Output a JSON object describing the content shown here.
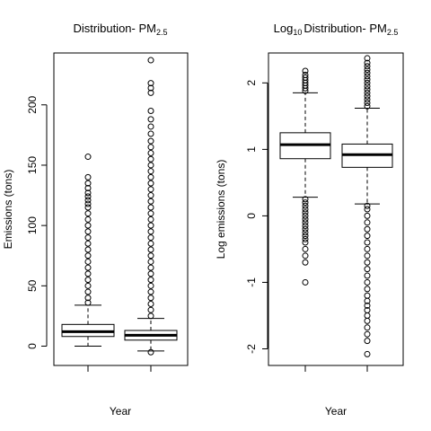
{
  "chart_data": [
    {
      "type": "boxplot",
      "title": "Distribution- PM",
      "title_subscript": "2.5",
      "xlabel": "Year",
      "ylabel": "Emissions (tons)",
      "yticks": [
        0,
        50,
        100,
        150,
        200
      ],
      "ylim": [
        -16,
        243
      ],
      "grid": false,
      "legend": "none",
      "categories": [
        "",
        ""
      ],
      "boxes": [
        {
          "whisker_low": 0,
          "q1": 8,
          "median": 12,
          "q3": 18,
          "whisker_high": 34,
          "outliers_low": [],
          "outliers_high": [
            36,
            40,
            45,
            50,
            55,
            60,
            65,
            70,
            75,
            80,
            85,
            90,
            95,
            100,
            105,
            110,
            115,
            118,
            121,
            124,
            127,
            131,
            135,
            140,
            157
          ]
        },
        {
          "whisker_low": -4,
          "q1": 5,
          "median": 9,
          "q3": 13,
          "whisker_high": 23,
          "outliers_low": [
            -5
          ],
          "outliers_high": [
            25,
            30,
            35,
            40,
            45,
            50,
            55,
            60,
            65,
            70,
            75,
            80,
            85,
            90,
            95,
            100,
            105,
            110,
            115,
            120,
            125,
            130,
            135,
            140,
            145,
            150,
            155,
            160,
            165,
            170,
            176,
            182,
            188,
            195,
            210,
            214,
            218,
            237
          ]
        }
      ]
    },
    {
      "type": "boxplot",
      "title": "Distribution- PM",
      "title_prefix": "Log",
      "title_prefix_subscript": "10",
      "title_subscript": "2.5",
      "xlabel": "Year",
      "ylabel": "Log emissions (tons)",
      "yticks": [
        -2,
        -1,
        0,
        1,
        2
      ],
      "ylim": [
        -2.25,
        2.45
      ],
      "grid": false,
      "legend": "none",
      "categories": [
        "",
        ""
      ],
      "boxes": [
        {
          "whisker_low": 0.28,
          "q1": 0.86,
          "median": 1.07,
          "q3": 1.25,
          "whisker_high": 1.85,
          "outliers_low": [
            -1.0,
            -0.7,
            -0.6,
            -0.5,
            -0.4,
            -0.35,
            -0.3,
            -0.25,
            -0.2,
            -0.15,
            -0.1,
            -0.05,
            0.0,
            0.05,
            0.1,
            0.15,
            0.2,
            0.25
          ],
          "outliers_high": [
            1.88,
            1.92,
            1.96,
            2.0,
            2.04,
            2.08,
            2.12,
            2.18
          ]
        },
        {
          "whisker_low": 0.18,
          "q1": 0.73,
          "median": 0.92,
          "q3": 1.08,
          "whisker_high": 1.62,
          "outliers_low": [
            -2.08,
            -1.88,
            -1.78,
            -1.68,
            -1.58,
            -1.5,
            -1.42,
            -1.35,
            -1.28,
            -1.2,
            -1.1,
            -1.0,
            -0.9,
            -0.8,
            -0.7,
            -0.6,
            -0.5,
            -0.4,
            -0.3,
            -0.2,
            -0.1,
            0.0,
            0.1,
            0.15
          ],
          "outliers_high": [
            1.65,
            1.7,
            1.75,
            1.8,
            1.85,
            1.9,
            1.95,
            2.0,
            2.05,
            2.1,
            2.15,
            2.2,
            2.25,
            2.3,
            2.37
          ]
        }
      ]
    }
  ]
}
